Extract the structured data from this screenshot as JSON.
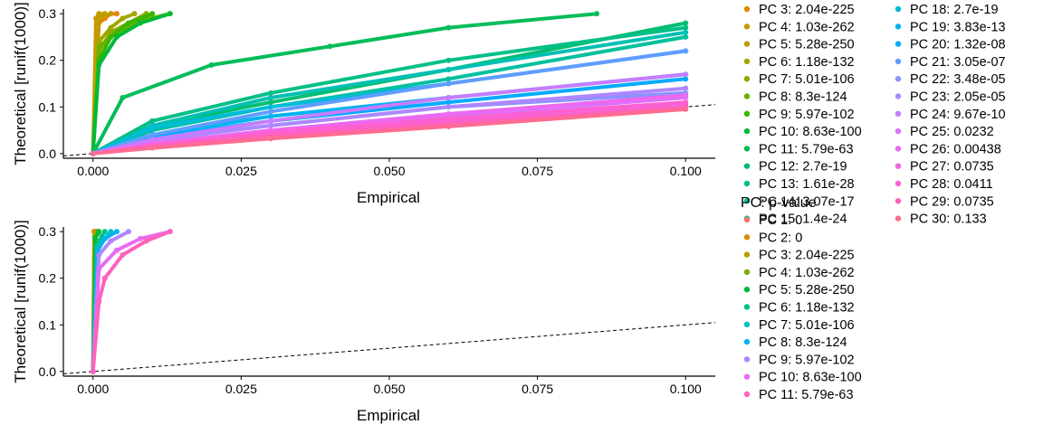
{
  "chart_data": [
    {
      "type": "scatter",
      "xlabel": "Empirical",
      "ylabel": "Theoretical [runif(1000)]",
      "xlim": [
        -0.005,
        0.105
      ],
      "ylim": [
        -0.01,
        0.31
      ],
      "x_ticks": [
        0.0,
        0.025,
        0.05,
        0.075,
        0.1
      ],
      "x_tick_labels": [
        "0.000",
        "0.025",
        "0.050",
        "0.075",
        "0.100"
      ],
      "y_ticks": [
        0.0,
        0.1,
        0.2,
        0.3
      ],
      "y_tick_labels": [
        "0.0",
        "0.1",
        "0.2",
        "0.3"
      ],
      "grid": false,
      "reference_line": {
        "style": "dashed",
        "slope": 1,
        "intercept": 0
      },
      "legend_placement": "right",
      "series": [
        {
          "name": "PC 3: 2.04e-225",
          "color": "#E58700",
          "x": [
            0.0,
            0.001,
            0.002,
            0.003,
            0.004
          ],
          "y": [
            0.0,
            0.28,
            0.29,
            0.3,
            0.3
          ]
        },
        {
          "name": "PC 4: 1.03e-262",
          "color": "#C99800",
          "x": [
            0.0,
            0.0005,
            0.001,
            0.002
          ],
          "y": [
            0.0,
            0.29,
            0.3,
            0.3
          ]
        },
        {
          "name": "PC 5: 5.28e-250",
          "color": "#BBA000",
          "x": [
            0.0,
            0.0008,
            0.0015,
            0.003
          ],
          "y": [
            0.0,
            0.285,
            0.295,
            0.3
          ]
        },
        {
          "name": "PC 6: 1.18e-132",
          "color": "#A3A500",
          "x": [
            0.0,
            0.001,
            0.003,
            0.005,
            0.007
          ],
          "y": [
            0.0,
            0.24,
            0.27,
            0.29,
            0.3
          ]
        },
        {
          "name": "PC 7: 5.01e-106",
          "color": "#8AAB00",
          "x": [
            0.0,
            0.001,
            0.003,
            0.006,
            0.009
          ],
          "y": [
            0.0,
            0.22,
            0.26,
            0.28,
            0.3
          ]
        },
        {
          "name": "PC 8: 8.3e-124",
          "color": "#6BB100",
          "x": [
            0.0,
            0.001,
            0.004,
            0.008,
            0.013
          ],
          "y": [
            0.0,
            0.23,
            0.26,
            0.285,
            0.3
          ]
        },
        {
          "name": "PC 9: 5.97e-102",
          "color": "#39B600",
          "x": [
            0.0,
            0.001,
            0.003,
            0.006,
            0.01
          ],
          "y": [
            0.0,
            0.2,
            0.25,
            0.28,
            0.3
          ]
        },
        {
          "name": "PC 10: 8.63e-100",
          "color": "#00BA38",
          "x": [
            0.0,
            0.001,
            0.004,
            0.008,
            0.013
          ],
          "y": [
            0.0,
            0.19,
            0.25,
            0.28,
            0.3
          ]
        },
        {
          "name": "PC 11: 5.79e-63",
          "color": "#00BC59",
          "x": [
            0.0,
            0.005,
            0.02,
            0.04,
            0.06,
            0.085
          ],
          "y": [
            0.0,
            0.12,
            0.19,
            0.23,
            0.27,
            0.3
          ]
        },
        {
          "name": "PC 12: 2.7e-19",
          "color": "#00BE6F",
          "x": [
            0.0,
            0.01,
            0.03,
            0.06,
            0.1
          ],
          "y": [
            0.0,
            0.06,
            0.11,
            0.18,
            0.28
          ]
        },
        {
          "name": "PC 13: 1.61e-28",
          "color": "#00BF86",
          "x": [
            0.0,
            0.01,
            0.03,
            0.06,
            0.1
          ],
          "y": [
            0.0,
            0.07,
            0.13,
            0.2,
            0.27
          ]
        },
        {
          "name": "PC 14: 3.07e-17",
          "color": "#00C09E",
          "x": [
            0.0,
            0.01,
            0.03,
            0.06,
            0.1
          ],
          "y": [
            0.0,
            0.05,
            0.1,
            0.16,
            0.25
          ]
        },
        {
          "name": "PC 15: 1.4e-24",
          "color": "#00BFB3",
          "x": [
            0.0,
            0.01,
            0.03,
            0.06,
            0.1
          ],
          "y": [
            0.0,
            0.06,
            0.12,
            0.18,
            0.26
          ]
        },
        {
          "name": "PC 18: 2.7e-19",
          "color": "#00BCD8",
          "x": [
            0.0,
            0.01,
            0.03,
            0.06,
            0.1
          ],
          "y": [
            0.0,
            0.055,
            0.1,
            0.15,
            0.22
          ]
        },
        {
          "name": "PC 19: 3.83e-13",
          "color": "#00B4EF",
          "x": [
            0.0,
            0.01,
            0.03,
            0.06,
            0.1
          ],
          "y": [
            0.0,
            0.04,
            0.08,
            0.12,
            0.17
          ]
        },
        {
          "name": "PC 20: 1.32e-08",
          "color": "#00ABFD",
          "x": [
            0.0,
            0.01,
            0.03,
            0.06,
            0.1
          ],
          "y": [
            0.0,
            0.035,
            0.07,
            0.11,
            0.16
          ]
        },
        {
          "name": "PC 21: 3.05e-07",
          "color": "#619CFF",
          "x": [
            0.0,
            0.01,
            0.03,
            0.06,
            0.1
          ],
          "y": [
            0.0,
            0.04,
            0.09,
            0.15,
            0.22
          ]
        },
        {
          "name": "PC 22: 3.48e-05",
          "color": "#8A93FF",
          "x": [
            0.0,
            0.01,
            0.03,
            0.06,
            0.1
          ],
          "y": [
            0.0,
            0.03,
            0.06,
            0.1,
            0.13
          ]
        },
        {
          "name": "PC 23: 2.05e-05",
          "color": "#AE87FF",
          "x": [
            0.0,
            0.01,
            0.03,
            0.06,
            0.1
          ],
          "y": [
            0.0,
            0.028,
            0.06,
            0.1,
            0.14
          ]
        },
        {
          "name": "PC 24: 9.67e-10",
          "color": "#C77CFF",
          "x": [
            0.0,
            0.01,
            0.03,
            0.06,
            0.1
          ],
          "y": [
            0.0,
            0.03,
            0.07,
            0.12,
            0.17
          ]
        },
        {
          "name": "PC 25: 0.0232",
          "color": "#DB72FB",
          "x": [
            0.0,
            0.01,
            0.03,
            0.06,
            0.1
          ],
          "y": [
            0.0,
            0.02,
            0.045,
            0.08,
            0.12
          ]
        },
        {
          "name": "PC 26: 0.00438",
          "color": "#EB69F0",
          "x": [
            0.0,
            0.01,
            0.03,
            0.06,
            0.1
          ],
          "y": [
            0.0,
            0.022,
            0.05,
            0.085,
            0.125
          ]
        },
        {
          "name": "PC 27: 0.0735",
          "color": "#F564E3",
          "x": [
            0.0,
            0.01,
            0.03,
            0.06,
            0.1
          ],
          "y": [
            0.0,
            0.016,
            0.04,
            0.07,
            0.105
          ]
        },
        {
          "name": "PC 28: 0.0411",
          "color": "#FD61D1",
          "x": [
            0.0,
            0.01,
            0.03,
            0.06,
            0.1
          ],
          "y": [
            0.0,
            0.018,
            0.045,
            0.075,
            0.11
          ]
        },
        {
          "name": "PC 29: 0.0735",
          "color": "#FF62BC",
          "x": [
            0.0,
            0.01,
            0.03,
            0.06,
            0.1
          ],
          "y": [
            0.0,
            0.015,
            0.038,
            0.065,
            0.1
          ]
        },
        {
          "name": "PC 30: 0.133",
          "color": "#FF6C91",
          "x": [
            0.0,
            0.01,
            0.03,
            0.06,
            0.1
          ],
          "y": [
            0.0,
            0.012,
            0.032,
            0.058,
            0.095
          ]
        }
      ]
    },
    {
      "type": "scatter",
      "xlabel": "Empirical",
      "ylabel": "Theoretical [runif(1000)]",
      "xlim": [
        -0.005,
        0.105
      ],
      "ylim": [
        -0.01,
        0.31
      ],
      "x_ticks": [
        0.0,
        0.025,
        0.05,
        0.075,
        0.1
      ],
      "x_tick_labels": [
        "0.000",
        "0.025",
        "0.050",
        "0.075",
        "0.100"
      ],
      "y_ticks": [
        0.0,
        0.1,
        0.2,
        0.3
      ],
      "y_tick_labels": [
        "0.0",
        "0.1",
        "0.2",
        "0.3"
      ],
      "grid": false,
      "reference_line": {
        "style": "dashed",
        "slope": 1,
        "intercept": 0
      },
      "legend_title": "PC: p-value",
      "legend_placement": "right",
      "series": [
        {
          "name": "PC 1: 0",
          "color": "#F8766D",
          "x": [
            0.0,
            0.0002,
            0.0004
          ],
          "y": [
            0.0,
            0.3,
            0.3
          ]
        },
        {
          "name": "PC 2: 0",
          "color": "#DE8C00",
          "x": [
            0.0,
            0.0002,
            0.0005
          ],
          "y": [
            0.0,
            0.3,
            0.3
          ]
        },
        {
          "name": "PC 3: 2.04e-225",
          "color": "#B79F00",
          "x": [
            0.0,
            0.0003,
            0.0008
          ],
          "y": [
            0.0,
            0.29,
            0.3
          ]
        },
        {
          "name": "PC 4: 1.03e-262",
          "color": "#7CAE00",
          "x": [
            0.0,
            0.0003,
            0.0008
          ],
          "y": [
            0.0,
            0.29,
            0.3
          ]
        },
        {
          "name": "PC 5: 5.28e-250",
          "color": "#00BA38",
          "x": [
            0.0,
            0.0004,
            0.001
          ],
          "y": [
            0.0,
            0.285,
            0.3
          ]
        },
        {
          "name": "PC 6: 1.18e-132",
          "color": "#00C08B",
          "x": [
            0.0,
            0.0006,
            0.0015,
            0.002
          ],
          "y": [
            0.0,
            0.27,
            0.29,
            0.3
          ]
        },
        {
          "name": "PC 7: 5.01e-106",
          "color": "#00BFC4",
          "x": [
            0.0,
            0.0008,
            0.002,
            0.003
          ],
          "y": [
            0.0,
            0.26,
            0.285,
            0.3
          ]
        },
        {
          "name": "PC 8: 8.3e-124",
          "color": "#00B4F0",
          "x": [
            0.0,
            0.0008,
            0.002,
            0.004
          ],
          "y": [
            0.0,
            0.26,
            0.285,
            0.3
          ]
        },
        {
          "name": "PC 9: 5.97e-102",
          "color": "#AE87FF",
          "x": [
            0.0,
            0.001,
            0.003,
            0.006
          ],
          "y": [
            0.0,
            0.25,
            0.28,
            0.3
          ]
        },
        {
          "name": "PC 10: 8.63e-100",
          "color": "#E76BF3",
          "x": [
            0.0,
            0.001,
            0.004,
            0.008,
            0.013
          ],
          "y": [
            0.0,
            0.22,
            0.26,
            0.285,
            0.3
          ]
        },
        {
          "name": "PC 11: 5.79e-63",
          "color": "#FF62BC",
          "x": [
            0.0,
            0.001,
            0.002,
            0.005,
            0.009,
            0.013
          ],
          "y": [
            0.0,
            0.15,
            0.2,
            0.25,
            0.28,
            0.3
          ]
        }
      ]
    }
  ]
}
